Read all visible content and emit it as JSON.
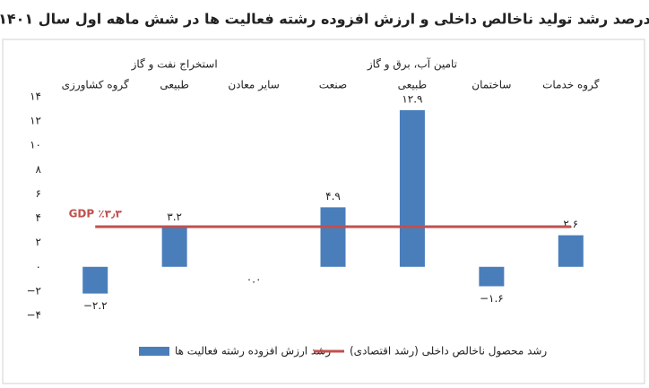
{
  "chart_data": {
    "type": "bar",
    "title": "درصد رشد تولید ناخالص داخلی و ارزش افزوده رشته فعالیت ها در شش ماهه اول سال ۱۴۰۱",
    "categories": [
      [
        "گروه کشاورزی"
      ],
      [
        "استخراج نفت و گاز",
        "طبیعی"
      ],
      [
        "سایر معادن"
      ],
      [
        "صنعت"
      ],
      [
        "تامین آب، برق و گاز",
        "طبیعی"
      ],
      [
        "ساختمان"
      ],
      [
        "گروه خدمات"
      ]
    ],
    "series": [
      {
        "name": "رشد ارزش افزوده رشته فعالیت ها",
        "color": "#4a7ebb",
        "values": [
          -2.2,
          3.2,
          0.0,
          4.9,
          12.9,
          -1.6,
          2.6
        ],
        "value_labels": [
          "−۲.۲",
          "۳.۲",
          "۰.۰",
          "۴.۹",
          "۱۲.۹",
          "−۱.۶",
          "۲.۶"
        ]
      }
    ],
    "lines": [
      {
        "name": "رشد محصول ناخالص داخلی (رشد اقتصادی)",
        "color": "#c0504d",
        "value": 3.3,
        "label": "GDP ٪۳٫۳"
      }
    ],
    "ylim": [
      -4,
      14
    ],
    "yticks": [
      {
        "value": -4,
        "label": "−۴"
      },
      {
        "value": -2,
        "label": "−۲"
      },
      {
        "value": 0,
        "label": "۰"
      },
      {
        "value": 2,
        "label": "۲"
      },
      {
        "value": 4,
        "label": "۴"
      },
      {
        "value": 6,
        "label": "۶"
      },
      {
        "value": 8,
        "label": "۸"
      },
      {
        "value": 10,
        "label": "۱۰"
      },
      {
        "value": 12,
        "label": "۱۲"
      },
      {
        "value": 14,
        "label": "۱۴"
      }
    ],
    "grid": false
  }
}
